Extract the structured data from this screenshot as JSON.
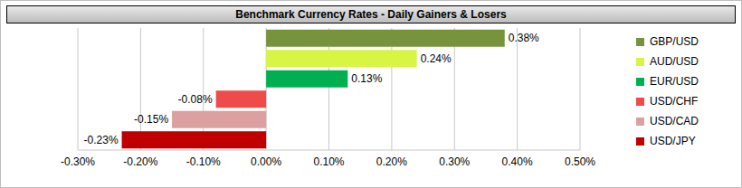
{
  "chart_data": {
    "type": "bar",
    "title": "Benchmark Currency Rates - Daily Gainers & Losers",
    "orientation": "horizontal",
    "categories": [
      "GBP/USD",
      "AUD/USD",
      "EUR/USD",
      "USD/CHF",
      "USD/CAD",
      "USD/JPY"
    ],
    "values": [
      0.38,
      0.24,
      0.13,
      -0.08,
      -0.15,
      -0.23
    ],
    "value_labels": [
      "0.38%",
      "0.24%",
      "0.13%",
      "-0.08%",
      "-0.15%",
      "-0.23%"
    ],
    "colors": [
      "#77933c",
      "#d7f542",
      "#00b050",
      "#f04b4b",
      "#dca0a0",
      "#c00000"
    ],
    "xlim": [
      -0.3,
      0.5
    ],
    "xticks": [
      {
        "value": -0.3,
        "label": "-0.30%"
      },
      {
        "value": -0.2,
        "label": "-0.20%"
      },
      {
        "value": -0.1,
        "label": "-0.10%"
      },
      {
        "value": 0,
        "label": "0.00%"
      },
      {
        "value": 0.1,
        "label": "0.10%"
      },
      {
        "value": 0.2,
        "label": "0.20%"
      },
      {
        "value": 0.3,
        "label": "0.30%"
      },
      {
        "value": 0.4,
        "label": "0.40%"
      },
      {
        "value": 0.5,
        "label": "0.50%"
      }
    ],
    "grid": true,
    "legend": "right",
    "data_labels": true,
    "tick_labels": "x"
  }
}
